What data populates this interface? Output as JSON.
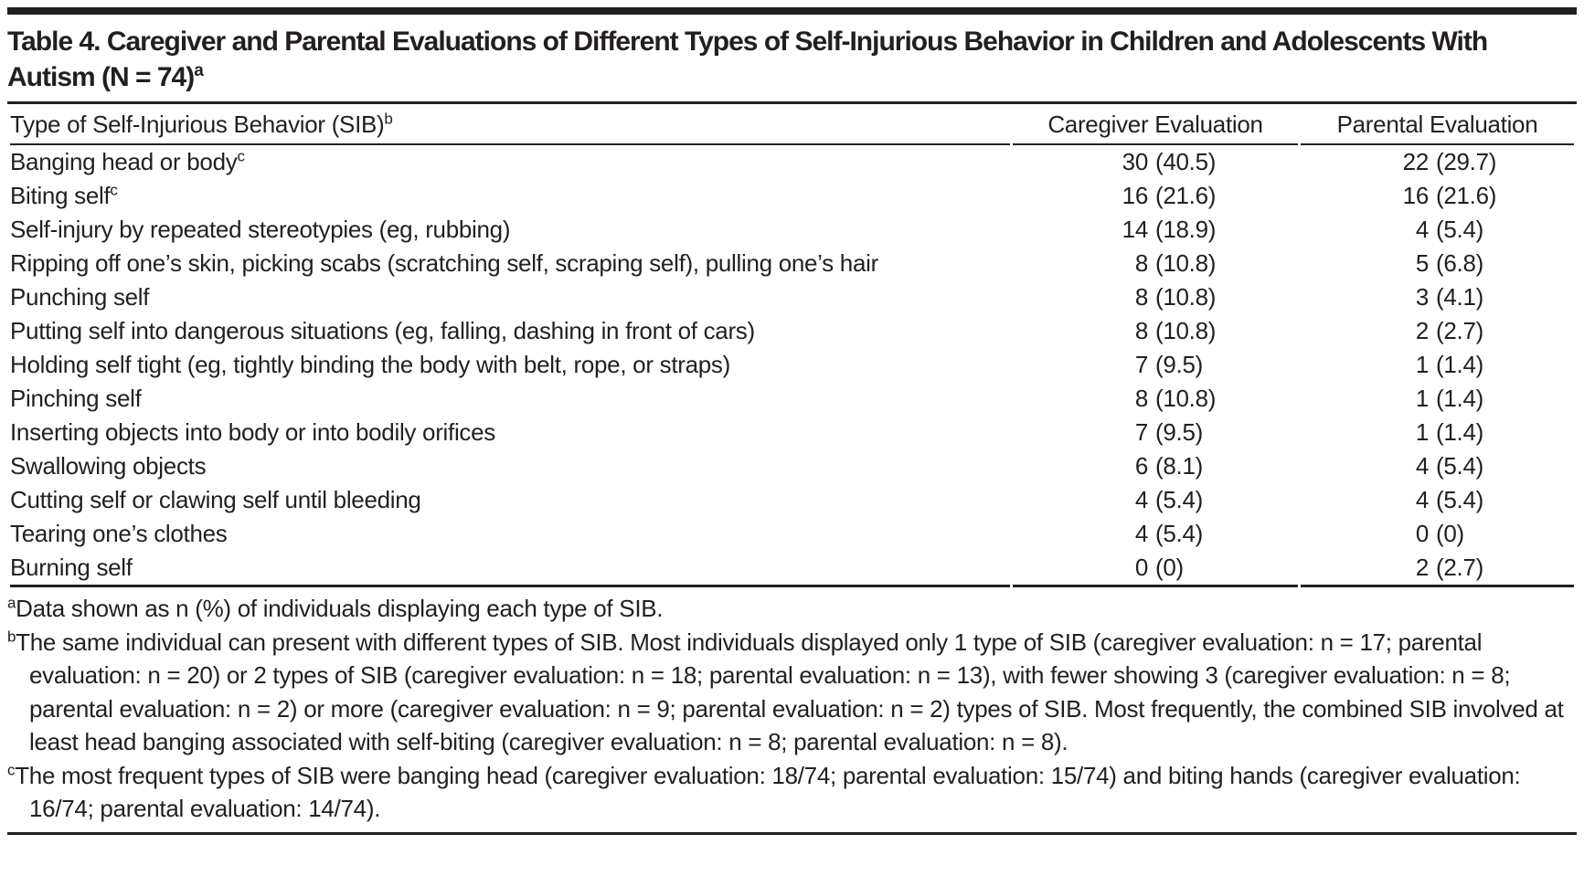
{
  "title": {
    "text": "Table 4. Caregiver and Parental Evaluations of Different Types of Self-Injurious Behavior in Children and Adolescents With Autism (N = 74)",
    "superscript": "a"
  },
  "colors": {
    "text": "#231f20",
    "rule": "#231f20",
    "background": "#ffffff"
  },
  "table": {
    "columns": [
      {
        "label": "Type of Self-Injurious Behavior (SIB)",
        "superscript": "b"
      },
      {
        "label": "Caregiver Evaluation"
      },
      {
        "label": "Parental Evaluation"
      }
    ],
    "rows": [
      {
        "behavior": "Banging head or body",
        "superscript": "c",
        "caregiver_n": "30",
        "caregiver_pct": "(40.5)",
        "parental_n": "22",
        "parental_pct": "(29.7)"
      },
      {
        "behavior": "Biting self",
        "superscript": "c",
        "caregiver_n": "16",
        "caregiver_pct": "(21.6)",
        "parental_n": "16",
        "parental_pct": "(21.6)"
      },
      {
        "behavior": "Self-injury by repeated stereotypies (eg, rubbing)",
        "caregiver_n": "14",
        "caregiver_pct": "(18.9)",
        "parental_n": "4",
        "parental_pct": "(5.4)"
      },
      {
        "behavior": "Ripping off one’s skin, picking scabs (scratching self, scraping self), pulling one’s hair",
        "caregiver_n": "8",
        "caregiver_pct": "(10.8)",
        "parental_n": "5",
        "parental_pct": "(6.8)"
      },
      {
        "behavior": "Punching self",
        "caregiver_n": "8",
        "caregiver_pct": "(10.8)",
        "parental_n": "3",
        "parental_pct": "(4.1)"
      },
      {
        "behavior": "Putting self into dangerous situations (eg, falling, dashing in front of cars)",
        "caregiver_n": "8",
        "caregiver_pct": "(10.8)",
        "parental_n": "2",
        "parental_pct": "(2.7)"
      },
      {
        "behavior": "Holding self tight (eg, tightly binding the body with belt, rope, or straps)",
        "caregiver_n": "7",
        "caregiver_pct": "(9.5)",
        "parental_n": "1",
        "parental_pct": "(1.4)"
      },
      {
        "behavior": "Pinching self",
        "caregiver_n": "8",
        "caregiver_pct": "(10.8)",
        "parental_n": "1",
        "parental_pct": "(1.4)"
      },
      {
        "behavior": "Inserting objects into body or into bodily orifices",
        "caregiver_n": "7",
        "caregiver_pct": "(9.5)",
        "parental_n": "1",
        "parental_pct": "(1.4)"
      },
      {
        "behavior": "Swallowing objects",
        "caregiver_n": "6",
        "caregiver_pct": "(8.1)",
        "parental_n": "4",
        "parental_pct": "(5.4)"
      },
      {
        "behavior": "Cutting self or clawing self until bleeding",
        "caregiver_n": "4",
        "caregiver_pct": "(5.4)",
        "parental_n": "4",
        "parental_pct": "(5.4)"
      },
      {
        "behavior": "Tearing one’s clothes",
        "caregiver_n": "4",
        "caregiver_pct": "(5.4)",
        "parental_n": "0",
        "parental_pct": "(0)"
      },
      {
        "behavior": "Burning self",
        "caregiver_n": "0",
        "caregiver_pct": "(0)",
        "parental_n": "2",
        "parental_pct": "(2.7)"
      }
    ]
  },
  "footnotes": [
    {
      "marker": "a",
      "text": "Data shown as n (%) of individuals displaying each type of SIB."
    },
    {
      "marker": "b",
      "text": "The same individual can present with different types of SIB. Most individuals displayed only 1 type of SIB (caregiver evaluation: n = 17; parental evaluation: n = 20) or 2 types of SIB (caregiver evaluation: n = 18; parental evaluation: n = 13), with fewer showing 3 (caregiver evaluation: n = 8; parental evaluation: n = 2) or more (caregiver evaluation: n = 9; parental evaluation: n = 2) types of SIB. Most frequently, the combined SIB involved at least head banging associated with self-biting (caregiver evaluation: n = 8; parental evaluation: n = 8)."
    },
    {
      "marker": "c",
      "text": "The most frequent types of SIB were banging head (caregiver evaluation: 18/74; parental evaluation: 15/74) and biting hands (caregiver evaluation: 16/74; parental evaluation: 14/74)."
    }
  ]
}
